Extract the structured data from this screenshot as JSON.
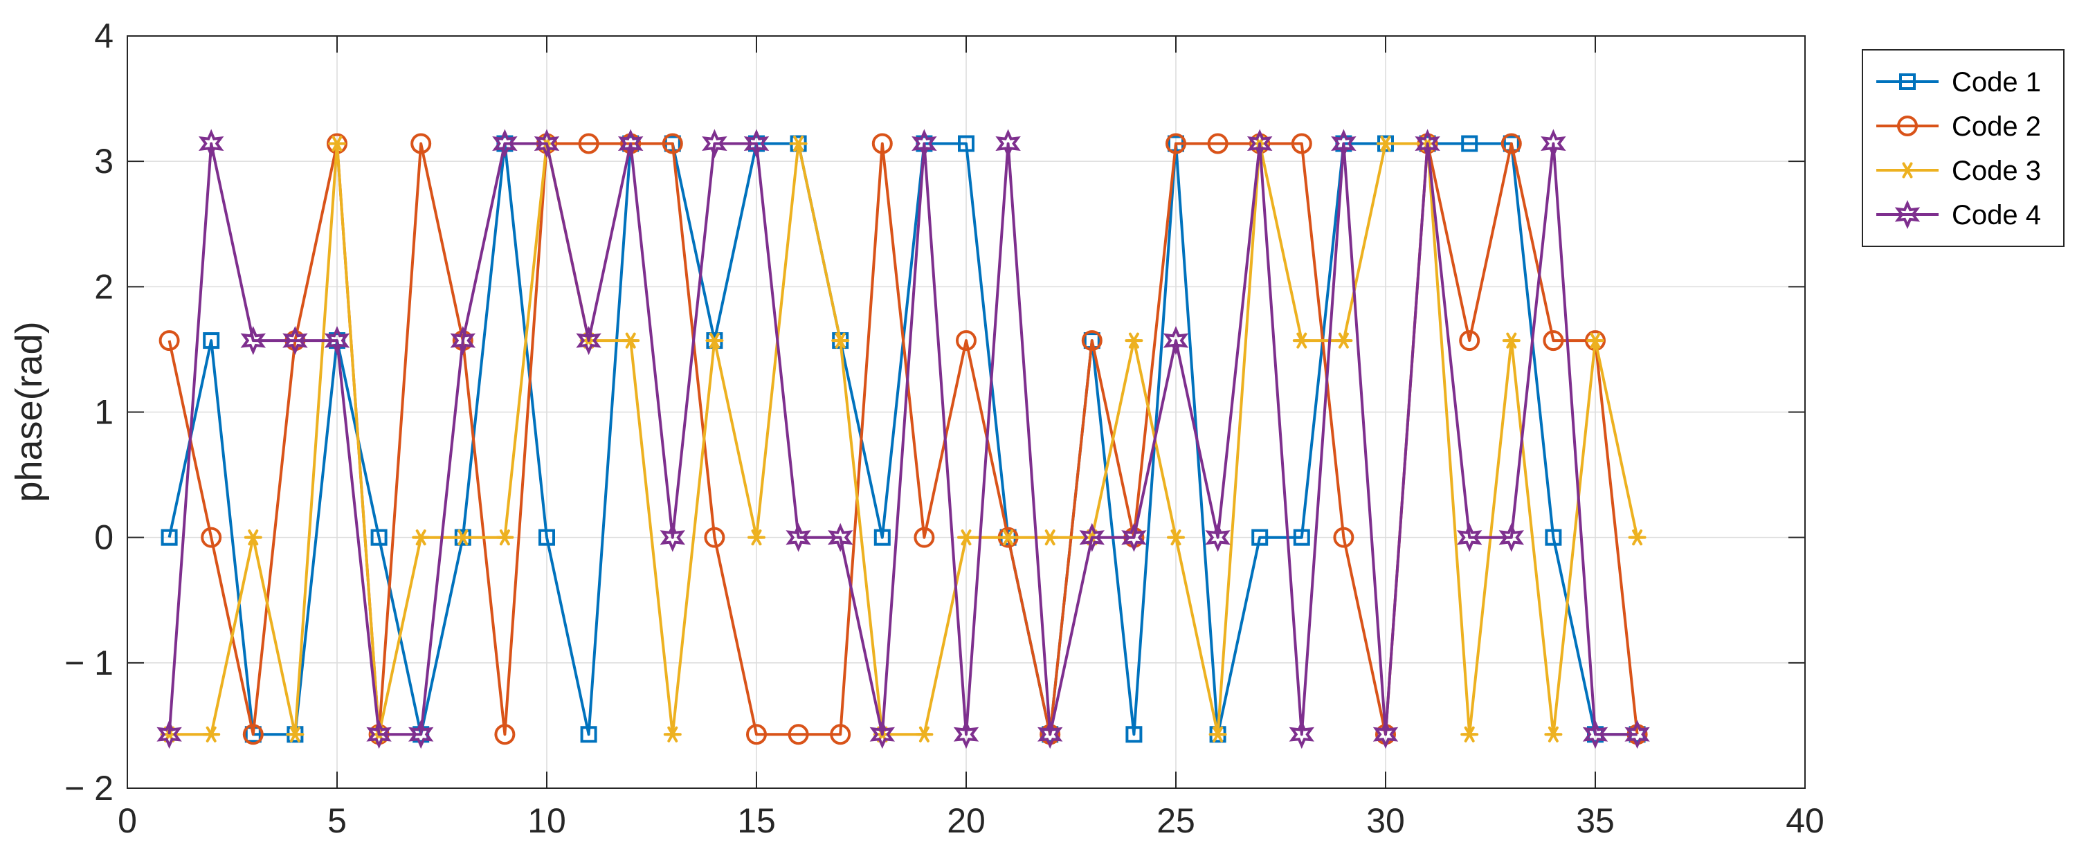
{
  "chart_data": {
    "type": "line",
    "title": "",
    "xlabel": "",
    "ylabel": "phase(rad)",
    "xlim": [
      0,
      40
    ],
    "ylim": [
      -2,
      4
    ],
    "xticks": [
      0,
      5,
      10,
      15,
      20,
      25,
      30,
      35,
      40
    ],
    "yticks": [
      -2,
      -1,
      0,
      1,
      2,
      3,
      4
    ],
    "xtick_labels": [
      "0",
      "5",
      "10",
      "15",
      "20",
      "25",
      "30",
      "35",
      "40"
    ],
    "ytick_labels": [
      "− 2",
      "− 1",
      "0",
      "1",
      "2",
      "3",
      "4"
    ],
    "grid": true,
    "legend_position": "outside-top-right",
    "x": [
      1,
      2,
      3,
      4,
      5,
      6,
      7,
      8,
      9,
      10,
      11,
      12,
      13,
      14,
      15,
      16,
      17,
      18,
      19,
      20,
      21,
      22,
      23,
      24,
      25,
      26,
      27,
      28,
      29,
      30,
      31,
      32,
      33,
      34,
      35,
      36
    ],
    "series": [
      {
        "name": "Code 1",
        "color": "#0072BD",
        "marker": "square",
        "values": [
          0,
          1.5708,
          -1.5708,
          -1.5708,
          1.5708,
          0,
          -1.5708,
          0,
          3.1416,
          0,
          -1.5708,
          3.1416,
          3.1416,
          1.5708,
          3.1416,
          3.1416,
          1.5708,
          0,
          3.1416,
          3.1416,
          0,
          -1.5708,
          1.5708,
          -1.5708,
          3.1416,
          -1.5708,
          0,
          0,
          3.1416,
          3.1416,
          3.1416,
          3.1416,
          3.1416,
          0,
          -1.5708,
          -1.5708
        ]
      },
      {
        "name": "Code 2",
        "color": "#D95319",
        "marker": "circle",
        "values": [
          1.5708,
          0,
          -1.5708,
          1.5708,
          3.1416,
          -1.5708,
          3.1416,
          1.5708,
          -1.5708,
          3.1416,
          3.1416,
          3.1416,
          3.1416,
          0,
          -1.5708,
          -1.5708,
          -1.5708,
          3.1416,
          0,
          1.5708,
          0,
          -1.5708,
          1.5708,
          0,
          3.1416,
          3.1416,
          3.1416,
          3.1416,
          0,
          -1.5708,
          3.1416,
          1.5708,
          3.1416,
          1.5708,
          1.5708,
          -1.5708
        ]
      },
      {
        "name": "Code 3",
        "color": "#EDB120",
        "marker": "asterisk",
        "values": [
          -1.5708,
          -1.5708,
          0,
          -1.5708,
          3.1416,
          -1.5708,
          0,
          0,
          0,
          3.1416,
          1.5708,
          1.5708,
          -1.5708,
          1.5708,
          0,
          3.1416,
          1.5708,
          -1.5708,
          -1.5708,
          0,
          0,
          0,
          0,
          1.5708,
          0,
          -1.5708,
          3.1416,
          1.5708,
          1.5708,
          3.1416,
          3.1416,
          -1.5708,
          1.5708,
          -1.5708,
          1.5708,
          0
        ]
      },
      {
        "name": "Code 4",
        "color": "#7E2F8E",
        "marker": "hexagram",
        "values": [
          -1.5708,
          3.1416,
          1.5708,
          1.5708,
          1.5708,
          -1.5708,
          -1.5708,
          1.5708,
          3.1416,
          3.1416,
          1.5708,
          3.1416,
          0,
          3.1416,
          3.1416,
          0,
          0,
          -1.5708,
          3.1416,
          -1.5708,
          3.1416,
          -1.5708,
          0,
          0,
          1.5708,
          0,
          3.1416,
          -1.5708,
          3.1416,
          -1.5708,
          3.1416,
          0,
          0,
          3.1416,
          -1.5708,
          -1.5708
        ]
      }
    ]
  }
}
